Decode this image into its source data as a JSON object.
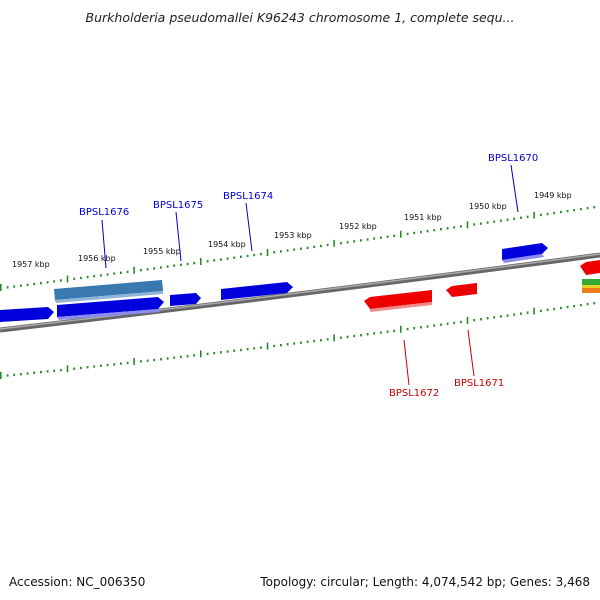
{
  "header": {
    "title": "Burkholderia pseudomallei K96243 chromosome 1, complete sequ..."
  },
  "footer": {
    "accession": "Accession: NC_006350",
    "summary": "Topology: circular; Length: 4,074,542 bp; Genes: 3,468"
  },
  "colors": {
    "backbone": "#7a7a7a",
    "tick": "#2a8a2a",
    "forward_gene": "#0000dd",
    "reverse_gene": "#ee0000",
    "forward_label": "#0000cc",
    "reverse_label": "#cc0000",
    "highlight_gene": "#3a78b0"
  },
  "kbp_labels": [
    "1957 kbp",
    "1956 kbp",
    "1955 kbp",
    "1954 kbp",
    "1953 kbp",
    "1952 kbp",
    "1951 kbp",
    "1950 kbp",
    "1949 kbp"
  ],
  "gene_labels_forward": [
    "BPSL1676",
    "BPSL1675",
    "BPSL1674",
    "BPSL1670"
  ],
  "gene_labels_reverse": [
    "BPSL1672",
    "BPSL1671"
  ]
}
